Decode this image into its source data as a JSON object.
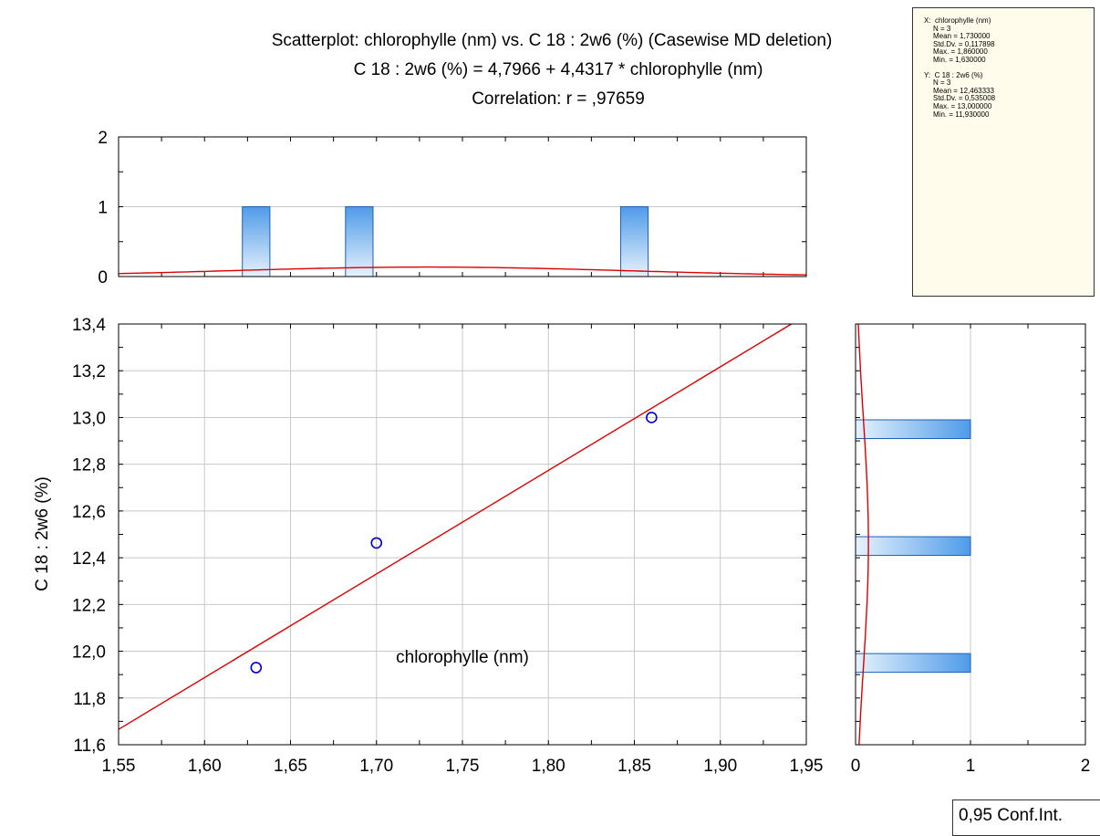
{
  "chart_data": {
    "type": "scatter",
    "title": "Scatterplot: chlorophylle (nm) vs. C 18 : 2w6 (%) (Casewise MD deletion)",
    "equation": "C 18 : 2w6 (%) = 4,7966 + 4,4317 * chlorophylle (nm)",
    "correlation": "Correlation: r = ,97659",
    "xlabel": "chlorophylle (nm)",
    "ylabel": "C 18 : 2w6 (%)",
    "xlim": [
      1.55,
      1.95
    ],
    "ylim": [
      11.6,
      13.4
    ],
    "x_ticks": [
      "1,55",
      "1,60",
      "1,65",
      "1,70",
      "1,75",
      "1,80",
      "1,85",
      "1,90",
      "1,95"
    ],
    "y_ticks": [
      "11,6",
      "11,8",
      "12,0",
      "12,2",
      "12,4",
      "12,6",
      "12,8",
      "13,0",
      "13,2",
      "13,4"
    ],
    "points": [
      {
        "x": 1.63,
        "y": 11.93
      },
      {
        "x": 1.7,
        "y": 12.463333
      },
      {
        "x": 1.86,
        "y": 13.0
      }
    ],
    "regression": {
      "intercept": 4.7966,
      "slope": 4.4317
    },
    "grid": true,
    "colors": {
      "points": "#0000cc",
      "line": "#dd0000",
      "bar_light": "#e4f0fc",
      "bar_dark": "#4f9be8",
      "bar_border": "#1e5fb4"
    },
    "top_histogram": {
      "ylim": [
        0,
        2
      ],
      "y_ticks": [
        "0",
        "1",
        "2"
      ],
      "bars": [
        {
          "x": 1.63,
          "count": 1
        },
        {
          "x": 1.69,
          "count": 1
        },
        {
          "x": 1.85,
          "count": 1
        }
      ],
      "normal_curve": {
        "mean": 1.73,
        "sd": 0.117898
      }
    },
    "right_histogram": {
      "xlim": [
        0,
        2
      ],
      "x_ticks": [
        "0",
        "1",
        "2"
      ],
      "bars": [
        {
          "y": 11.95,
          "count": 1
        },
        {
          "y": 12.45,
          "count": 1
        },
        {
          "y": 12.95,
          "count": 1
        }
      ],
      "normal_curve": {
        "mean": 12.463333,
        "sd": 0.535008
      }
    }
  },
  "stats": {
    "x_header": "X:  chlorophylle (nm)",
    "x_lines": [
      "N = 3",
      "Mean = 1,730000",
      "Std.Dv. = 0,117898",
      "Max. = 1,860000",
      "Min. = 1,630000"
    ],
    "y_header": "Y:  C 18 : 2w6 (%)",
    "y_lines": [
      "N = 3",
      "Mean = 12,463333",
      "Std.Dv. = 0,535008",
      "Max. = 13,000000",
      "Min. = 11,930000"
    ]
  },
  "conf_int_label": "0,95 Conf.Int."
}
